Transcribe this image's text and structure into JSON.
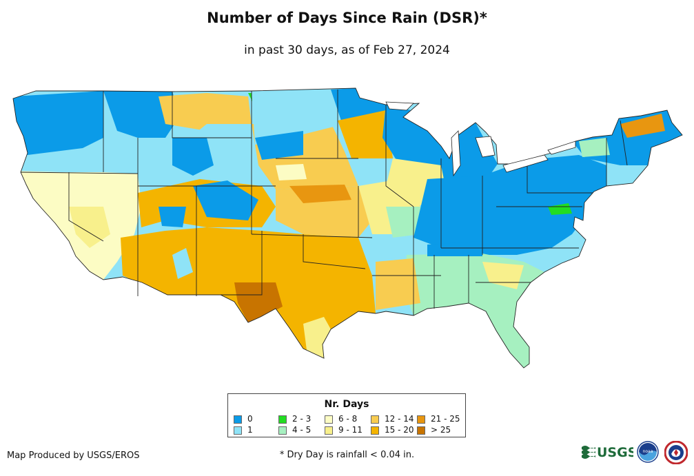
{
  "title": "Number of Days Since Rain (DSR)*",
  "subtitle": "in past 30 days, as of Feb 27, 2024",
  "legend": {
    "title": "Nr. Days",
    "items": [
      {
        "label": "0",
        "color": "#0b9be8"
      },
      {
        "label": "1",
        "color": "#8fe3f7"
      },
      {
        "label": "2 - 3",
        "color": "#22dd22"
      },
      {
        "label": "4 - 5",
        "color": "#a6f0c0"
      },
      {
        "label": "6 - 8",
        "color": "#fcfcc4"
      },
      {
        "label": "9 - 11",
        "color": "#f8f08c"
      },
      {
        "label": "12 - 14",
        "color": "#f8cc50"
      },
      {
        "label": "15 - 20",
        "color": "#f4b400"
      },
      {
        "label": "21 - 25",
        "color": "#e89610"
      },
      {
        "label": "> 25",
        "color": "#c87400"
      }
    ]
  },
  "credit": "Map Produced by USGS/EROS",
  "footnote": "* Dry Day is rainfall < 0.04 in.",
  "logos": {
    "usgs": "USGS",
    "noaa": "noaa"
  }
}
